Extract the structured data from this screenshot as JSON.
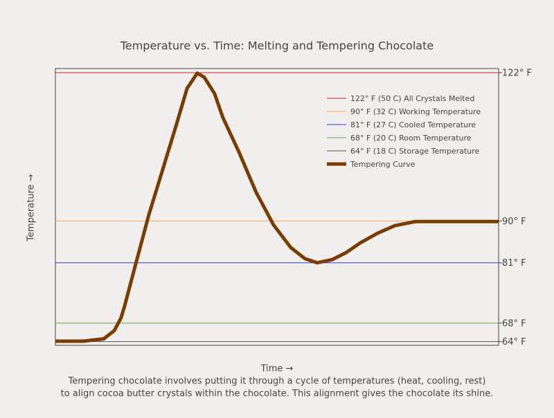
{
  "chart_data": {
    "type": "line",
    "title": "Temperature vs. Time: Melting and Tempering Chocolate",
    "x_label": "Time →",
    "y_label": "Temperature →",
    "caption": [
      "Tempering chocolate involves putting it through a cycle of temperatures (heat, cooling, rest)",
      "to align cocoa butter crystals within the chocolate. This alignment gives the chocolate its shine."
    ],
    "xlim": [
      0,
      100
    ],
    "ylim": [
      63.2,
      122.9
    ],
    "y2ticks": [
      {
        "value": 122,
        "label": "122° F"
      },
      {
        "value": 90,
        "label": "90° F"
      },
      {
        "value": 81,
        "label": "81° F"
      },
      {
        "value": 68,
        "label": "68° F"
      },
      {
        "value": 64,
        "label": "64° F"
      }
    ],
    "reference_lines": [
      {
        "name": "122° F (50 C) All Crystals Melted",
        "value": 122,
        "color": "#cc2222"
      },
      {
        "name": "90° F (32 C) Working Temperature",
        "value": 90,
        "color": "#f0a860"
      },
      {
        "name": "81° F (27 C) Cooled Temperature",
        "value": 81,
        "color": "#3333cc"
      },
      {
        "name": "68° F (20 C) Room Temperature",
        "value": 68,
        "color": "#66aa44"
      },
      {
        "name": "64° F (18 C) Storage Temperature",
        "value": 64,
        "color": "#555555"
      }
    ],
    "series": [
      {
        "name": "Tempering Curve",
        "color": "#7a3d00",
        "x": [
          0,
          6.25,
          10.9,
          13.3,
          14.8,
          15.6,
          18,
          21.1,
          24.2,
          27.3,
          29.7,
          32,
          33.6,
          35.9,
          37.8,
          41.4,
          45.3,
          49.2,
          53.1,
          56.3,
          59.1,
          62.5,
          65.6,
          68.8,
          72.7,
          76.6,
          81.3,
          85.9,
          100
        ],
        "values": [
          64.1,
          64.1,
          64.6,
          66.4,
          69.1,
          71.6,
          80.3,
          91.4,
          101.1,
          110.8,
          118.6,
          121.9,
          121,
          117.5,
          112.3,
          104.9,
          96.2,
          89.2,
          84.3,
          81.9,
          81,
          81.7,
          83.2,
          85.3,
          87.4,
          89,
          89.9,
          89.9,
          89.9
        ]
      }
    ]
  }
}
